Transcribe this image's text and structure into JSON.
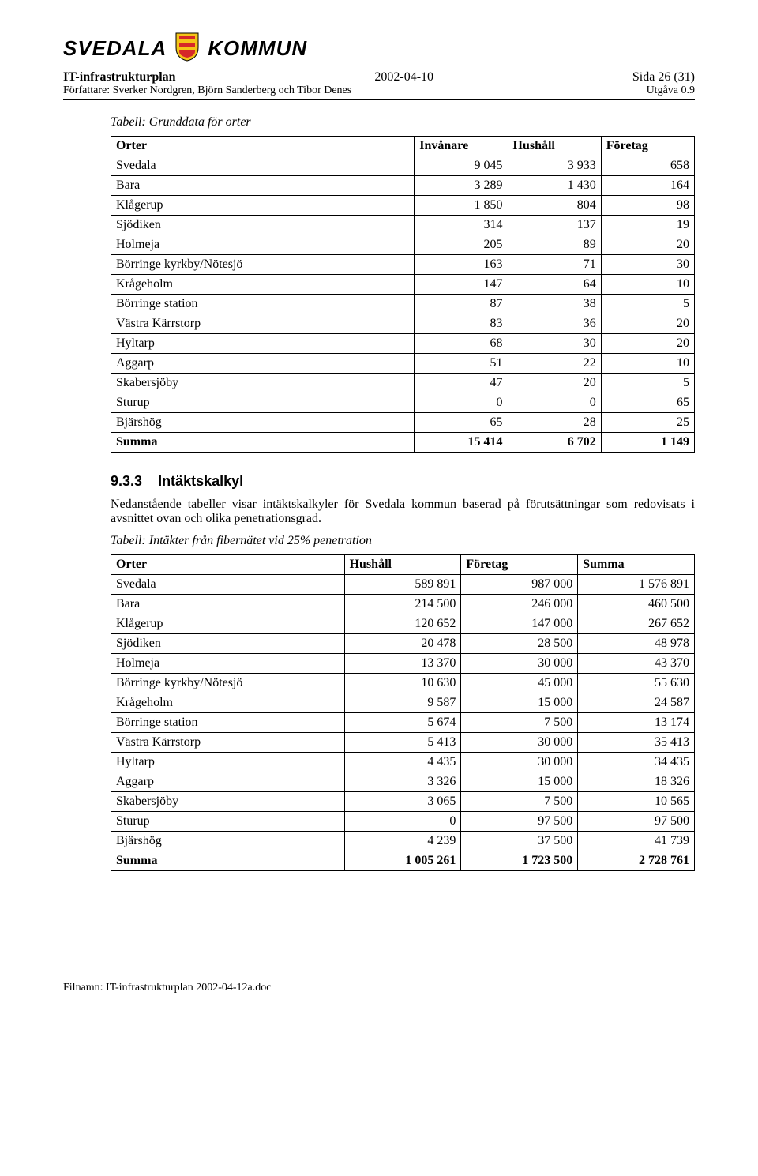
{
  "logo": {
    "left_text": "SVEDALA",
    "right_text": "KOMMUN"
  },
  "header": {
    "title": "IT-infrastrukturplan",
    "date": "2002-04-10",
    "page_info": "Sida 26 (31)",
    "authors_label": "Författare: Sverker Nordgren, Björn Sanderberg och Tibor Denes",
    "version": "Utgåva 0.9"
  },
  "table1": {
    "caption": "Tabell: Grunddata för orter",
    "columns": [
      "Orter",
      "Invånare",
      "Hushåll",
      "Företag"
    ],
    "rows": [
      [
        "Svedala",
        "9 045",
        "3 933",
        "658"
      ],
      [
        "Bara",
        "3 289",
        "1 430",
        "164"
      ],
      [
        "Klågerup",
        "1 850",
        "804",
        "98"
      ],
      [
        "Sjödiken",
        "314",
        "137",
        "19"
      ],
      [
        "Holmeja",
        "205",
        "89",
        "20"
      ],
      [
        "Börringe kyrkby/Nötesjö",
        "163",
        "71",
        "30"
      ],
      [
        "Krågeholm",
        "147",
        "64",
        "10"
      ],
      [
        "Börringe station",
        "87",
        "38",
        "5"
      ],
      [
        "Västra Kärrstorp",
        "83",
        "36",
        "20"
      ],
      [
        "Hyltarp",
        "68",
        "30",
        "20"
      ],
      [
        "Aggarp",
        "51",
        "22",
        "10"
      ],
      [
        "Skabersjöby",
        "47",
        "20",
        "5"
      ],
      [
        "Sturup",
        "0",
        "0",
        "65"
      ],
      [
        "Bjärshög",
        "65",
        "28",
        "25"
      ]
    ],
    "summary": [
      "Summa",
      "15 414",
      "6 702",
      "1 149"
    ]
  },
  "section": {
    "number": "9.3.3",
    "title": "Intäktskalkyl",
    "paragraph": "Nedanstående tabeller visar intäktskalkyler för Svedala kommun baserad på förutsättningar som redovisats i avsnittet ovan och olika penetrationsgrad."
  },
  "table2": {
    "caption": "Tabell: Intäkter från fibernätet vid 25% penetration",
    "columns": [
      "Orter",
      "Hushåll",
      "Företag",
      "Summa"
    ],
    "rows": [
      [
        "Svedala",
        "589 891",
        "987 000",
        "1 576 891"
      ],
      [
        "Bara",
        "214 500",
        "246 000",
        "460 500"
      ],
      [
        "Klågerup",
        "120 652",
        "147 000",
        "267 652"
      ],
      [
        "Sjödiken",
        "20 478",
        "28 500",
        "48 978"
      ],
      [
        "Holmeja",
        "13 370",
        "30 000",
        "43 370"
      ],
      [
        "Börringe kyrkby/Nötesjö",
        "10 630",
        "45 000",
        "55 630"
      ],
      [
        "Krågeholm",
        "9 587",
        "15 000",
        "24 587"
      ],
      [
        "Börringe station",
        "5 674",
        "7 500",
        "13 174"
      ],
      [
        "Västra Kärrstorp",
        "5 413",
        "30 000",
        "35 413"
      ],
      [
        "Hyltarp",
        "4 435",
        "30 000",
        "34 435"
      ],
      [
        "Aggarp",
        "3 326",
        "15 000",
        "18 326"
      ],
      [
        "Skabersjöby",
        "3 065",
        "7 500",
        "10 565"
      ],
      [
        "Sturup",
        "0",
        "97 500",
        "97 500"
      ],
      [
        "Bjärshög",
        "4 239",
        "37 500",
        "41 739"
      ]
    ],
    "summary": [
      "Summa",
      "1 005 261",
      "1 723 500",
      "2 728 761"
    ]
  },
  "footer": {
    "filename": "Filnamn: IT-infrastrukturplan 2002-04-12a.doc"
  },
  "style": {
    "col_widths_t1": [
      "52%",
      "16%",
      "16%",
      "16%"
    ],
    "col_widths_t2": [
      "40%",
      "20%",
      "20%",
      "20%"
    ]
  }
}
